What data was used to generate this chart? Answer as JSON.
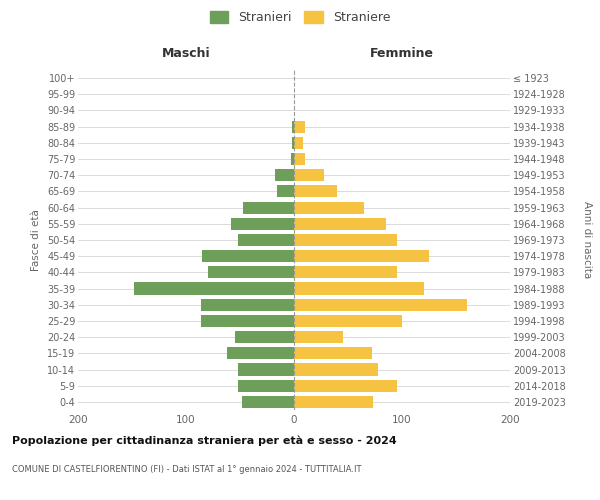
{
  "age_groups": [
    "0-4",
    "5-9",
    "10-14",
    "15-19",
    "20-24",
    "25-29",
    "30-34",
    "35-39",
    "40-44",
    "45-49",
    "50-54",
    "55-59",
    "60-64",
    "65-69",
    "70-74",
    "75-79",
    "80-84",
    "85-89",
    "90-94",
    "95-99",
    "100+"
  ],
  "birth_years": [
    "2019-2023",
    "2014-2018",
    "2009-2013",
    "2004-2008",
    "1999-2003",
    "1994-1998",
    "1989-1993",
    "1984-1988",
    "1979-1983",
    "1974-1978",
    "1969-1973",
    "1964-1968",
    "1959-1963",
    "1954-1958",
    "1949-1953",
    "1944-1948",
    "1939-1943",
    "1934-1938",
    "1929-1933",
    "1924-1928",
    "≤ 1923"
  ],
  "maschi": [
    48,
    52,
    52,
    62,
    55,
    86,
    86,
    148,
    80,
    85,
    52,
    58,
    47,
    16,
    18,
    3,
    2,
    2,
    0,
    0,
    0
  ],
  "femmine": [
    73,
    95,
    78,
    72,
    45,
    100,
    160,
    120,
    95,
    125,
    95,
    85,
    65,
    40,
    28,
    10,
    8,
    10,
    0,
    0,
    0
  ],
  "color_maschi": "#6d9e5a",
  "color_femmine": "#f5c242",
  "title": "Popolazione per cittadinanza straniera per età e sesso - 2024",
  "subtitle": "COMUNE DI CASTELFIORENTINO (FI) - Dati ISTAT al 1° gennaio 2024 - TUTTITALIA.IT",
  "xlabel_maschi": "Maschi",
  "xlabel_femmine": "Femmine",
  "ylabel_left": "Fasce di età",
  "ylabel_right": "Anni di nascita",
  "legend_maschi": "Stranieri",
  "legend_femmine": "Straniere",
  "xlim": 200,
  "background_color": "#ffffff",
  "grid_color": "#cccccc"
}
